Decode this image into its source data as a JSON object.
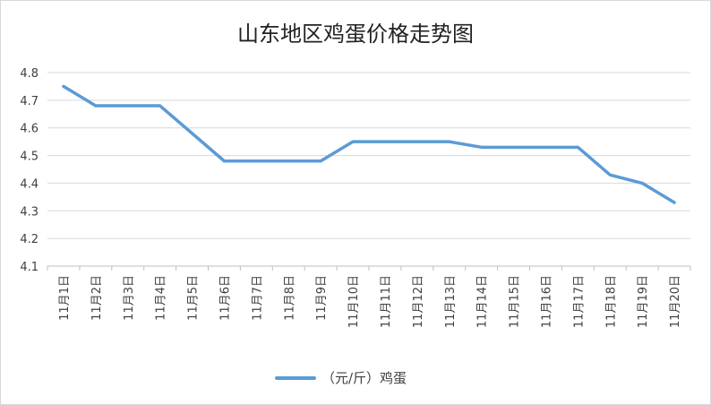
{
  "chart_data": {
    "type": "line",
    "title": "山东地区鸡蛋价格走势图",
    "categories": [
      "11月1日",
      "11月2日",
      "11月3日",
      "11月4日",
      "11月5日",
      "11月6日",
      "11月7日",
      "11月8日",
      "11月9日",
      "11月10日",
      "11月11日",
      "11月12日",
      "11月13日",
      "11月14日",
      "11月15日",
      "11月16日",
      "11月17日",
      "11月18日",
      "11月19日",
      "11月20日"
    ],
    "series": [
      {
        "name": "（元/斤）鸡蛋",
        "color": "#5b9bd5",
        "values": [
          4.75,
          4.68,
          4.68,
          4.68,
          4.58,
          4.48,
          4.48,
          4.48,
          4.48,
          4.55,
          4.55,
          4.55,
          4.55,
          4.53,
          4.53,
          4.53,
          4.53,
          4.43,
          4.4,
          4.33
        ]
      }
    ],
    "ylim": [
      4.1,
      4.8
    ],
    "yticks": [
      "4.1",
      "4.2",
      "4.3",
      "4.4",
      "4.5",
      "4.6",
      "4.7",
      "4.8"
    ],
    "grid": true,
    "legend_position": "bottom",
    "grid_color": "#d9d9d9",
    "axis_color": "#bfbfbf"
  }
}
